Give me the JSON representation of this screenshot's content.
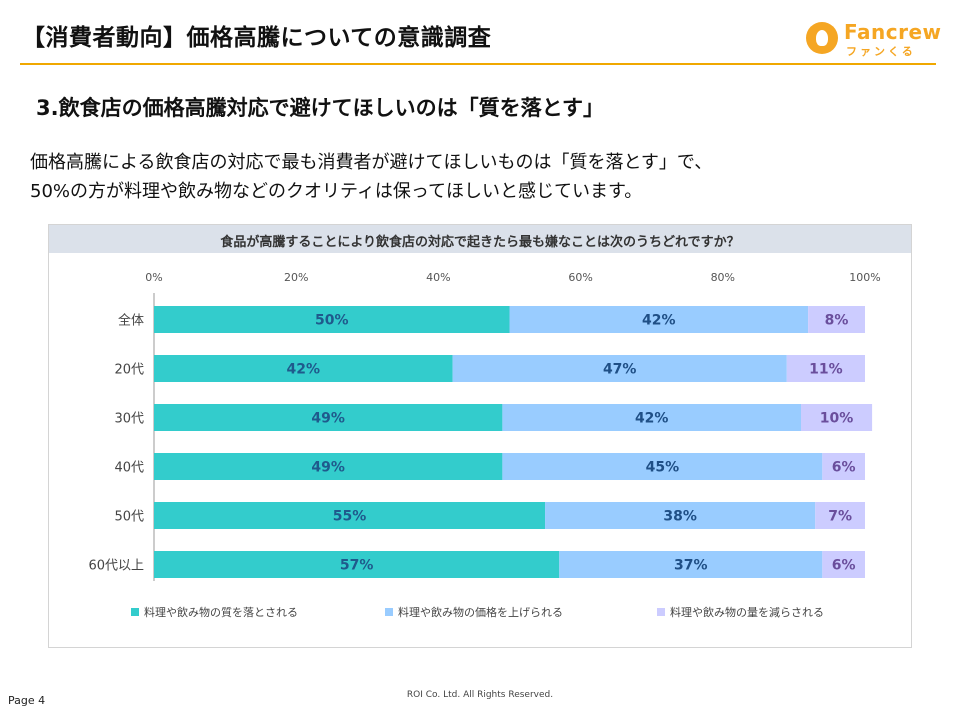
{
  "header": {
    "title": "【消費者動向】価格高騰についての意識調査",
    "logo_text": "Fancrew",
    "logo_kana": "ファンくる",
    "logo_color": "#f5a623",
    "rule_color": "#f0a800"
  },
  "section": {
    "title": "3.飲食店の価格高騰対応で避けてほしいのは「質を落とす」"
  },
  "intro": {
    "line1": "価格高騰による飲食店の対応で最も消費者が避けてほしいものは「質を落とす」で、",
    "line2": "50%の方が料理や飲み物などのクオリティは保ってほしいと感じています。"
  },
  "chart_data": {
    "type": "bar",
    "orientation": "horizontal",
    "stacked": true,
    "title": "食品が高騰することにより飲食店の対応で起きたら最も嫌なことは次のうちどれですか？",
    "categories": [
      "全体",
      "20代",
      "30代",
      "40代",
      "50代",
      "60代以上"
    ],
    "x_ticks": [
      "0%",
      "20%",
      "40%",
      "60%",
      "80%",
      "100%"
    ],
    "xlim": [
      0,
      100
    ],
    "series": [
      {
        "name": "料理や飲み物の質を落とされる",
        "values": [
          50,
          42,
          49,
          49,
          55,
          57
        ],
        "color": "#33cccc",
        "label_color": "#1f5a8c"
      },
      {
        "name": "料理や飲み物の価格を上げられる",
        "values": [
          42,
          47,
          42,
          45,
          38,
          37
        ],
        "color": "#99ccff",
        "label_color": "#1f4f86"
      },
      {
        "name": "料理や飲み物の量を減らされる",
        "values": [
          8,
          11,
          10,
          6,
          7,
          6
        ],
        "color": "#ccccff",
        "label_color": "#6a4e9c"
      }
    ],
    "legend_position": "bottom"
  },
  "footer": {
    "page": "Page 4",
    "copyright": "ROI Co. Ltd. All Rights Reserved."
  }
}
